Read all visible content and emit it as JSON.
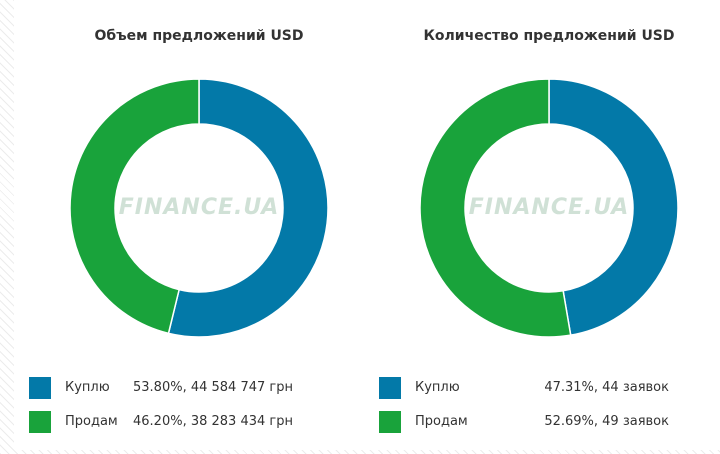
{
  "colors": {
    "buy": "#0379a8",
    "sell": "#19a33b"
  },
  "watermark": "FINANCE.UA",
  "chart_data": [
    {
      "type": "pie",
      "title": "Объем предложений USD",
      "series": [
        {
          "name": "Куплю",
          "value": 53.8,
          "amount": "53.80%, 44 584 747 грн"
        },
        {
          "name": "Продам",
          "value": 46.2,
          "amount": "46.20%, 38 283 434 грн"
        }
      ]
    },
    {
      "type": "pie",
      "title": "Количество предложений USD",
      "series": [
        {
          "name": "Куплю",
          "value": 47.31,
          "amount": "47.31%, 44 заявок"
        },
        {
          "name": "Продам",
          "value": 52.69,
          "amount": "52.69%, 49 заявок"
        }
      ]
    }
  ]
}
